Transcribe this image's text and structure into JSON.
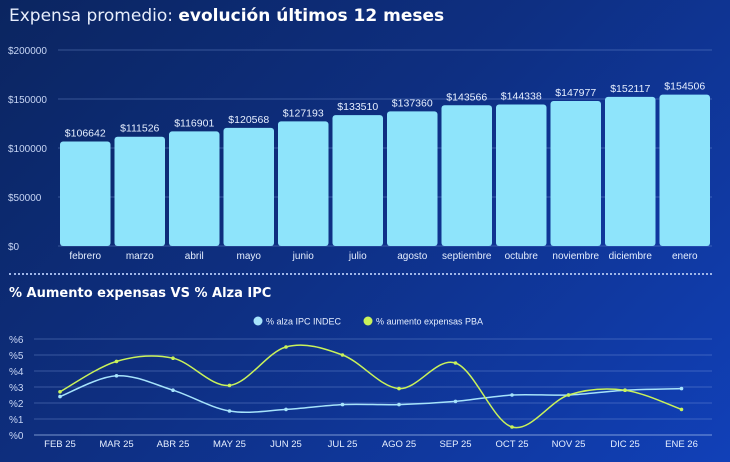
{
  "title_prefix": "Expensa promedio: ",
  "title_bold": "evolución últimos 12 meses",
  "title2": "% Aumento expensas VS % Alza IPC",
  "chart_data": [
    {
      "type": "bar",
      "categories": [
        "febrero",
        "marzo",
        "abril",
        "mayo",
        "junio",
        "julio",
        "agosto",
        "septiembre",
        "octubre",
        "noviembre",
        "diciembre",
        "enero"
      ],
      "values": [
        106642,
        111526,
        116901,
        120568,
        127193,
        133510,
        137360,
        143566,
        144338,
        147977,
        152117,
        154506
      ],
      "value_labels": [
        "$106642",
        "$111526",
        "$116901",
        "$120568",
        "$127193",
        "$133510",
        "$137360",
        "$143566",
        "$144338",
        "$147977",
        "$152117",
        "$154506"
      ],
      "yticks": [
        0,
        50000,
        100000,
        150000,
        200000
      ],
      "ytick_labels": [
        "$0",
        "$50000",
        "$100000",
        "$150000",
        "$200000"
      ],
      "ylim": [
        0,
        200000
      ],
      "grid": true,
      "bar_color": "#8ee4fb"
    },
    {
      "type": "line",
      "categories": [
        "FEB 25",
        "MAR 25",
        "ABR 25",
        "MAY 25",
        "JUN 25",
        "JUL 25",
        "AGO 25",
        "SEP 25",
        "OCT 25",
        "NOV 25",
        "DIC 25",
        "ENE 26"
      ],
      "series": [
        {
          "name": "% alza IPC INDEC",
          "color": "#a6e3fb",
          "values": [
            2.4,
            3.7,
            2.8,
            1.5,
            1.6,
            1.9,
            1.9,
            2.1,
            2.5,
            2.5,
            2.8,
            2.9
          ]
        },
        {
          "name": "% aumento expensas PBA",
          "color": "#c9f25a",
          "values": [
            2.7,
            4.6,
            4.8,
            3.1,
            5.5,
            5.0,
            2.9,
            4.5,
            0.5,
            2.5,
            2.8,
            1.6
          ]
        }
      ],
      "yticks": [
        0,
        1,
        2,
        3,
        4,
        5,
        6
      ],
      "ytick_labels": [
        "%0",
        "%1",
        "%2",
        "%3",
        "%4",
        "%5",
        "%6"
      ],
      "ylim": [
        0,
        6
      ],
      "grid": true,
      "legend": "top-center",
      "smooth": true
    }
  ]
}
